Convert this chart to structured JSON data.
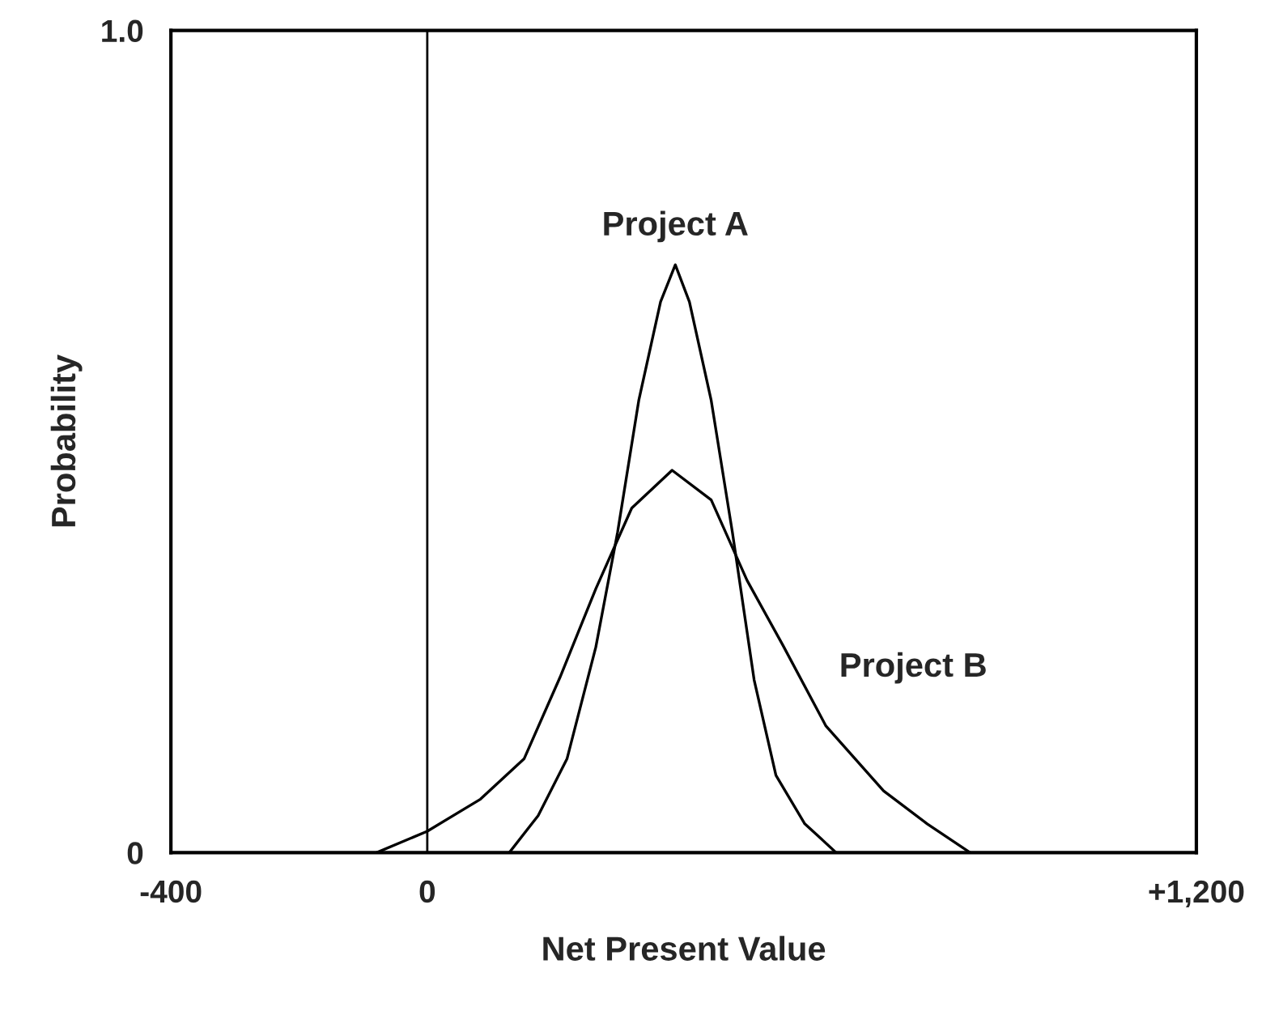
{
  "chart_data": {
    "type": "line",
    "xlabel": "Net Present Value",
    "ylabel": "Probability",
    "xlim": [
      -400,
      1200
    ],
    "ylim": [
      0,
      1
    ],
    "xticks": [
      -400,
      0,
      {
        "value": 1200,
        "label": "+1,200"
      }
    ],
    "yticks": [
      0,
      {
        "value": 1,
        "label": "1.0"
      }
    ],
    "grid": false,
    "legend": false,
    "marker": "none",
    "line_style": "solid",
    "ref_lines": [
      {
        "axis": "x",
        "value": 0,
        "color": "#000000"
      }
    ],
    "series": [
      {
        "name": "Project A",
        "color": "#000000",
        "x": [
          128,
          173,
          218,
          263,
          297,
          330,
          364,
          387,
          409,
          443,
          476,
          510,
          544,
          589,
          638
        ],
        "values": [
          0,
          0.045,
          0.114,
          0.25,
          0.39,
          0.55,
          0.67,
          0.715,
          0.67,
          0.55,
          0.39,
          0.21,
          0.094,
          0.035,
          0
        ]
      },
      {
        "name": "Project B",
        "color": "#000000",
        "x": [
          -79,
          0,
          83,
          151,
          207,
          263,
          319,
          382,
          443,
          499,
          555,
          622,
          712,
          780,
          847
        ],
        "values": [
          0,
          0.026,
          0.065,
          0.114,
          0.213,
          0.321,
          0.419,
          0.465,
          0.429,
          0.331,
          0.252,
          0.154,
          0.075,
          0.035,
          0
        ]
      }
    ]
  }
}
